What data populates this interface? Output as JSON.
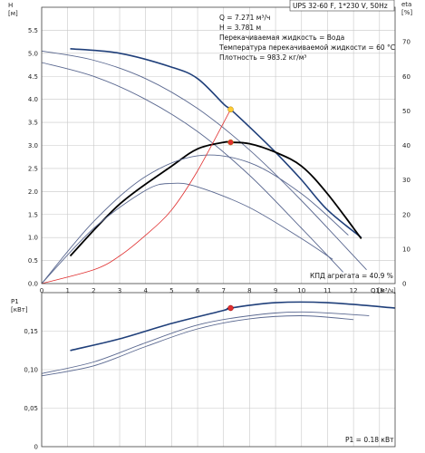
{
  "title": "UPS 32-60 F, 1*230 V, 50Hz",
  "info_lines": [
    "Q = 7.271 м³/ч",
    "H = 3.781 м",
    "Перекачиваемая жидкость = Вода",
    "Температура перекачиваемой жидкости = 60 °C",
    "Плотность = 983.2 кг/м³"
  ],
  "efficiency_note": "КПД агрегата = 40.9 %",
  "power_note": "P1 = 0.18 кВт",
  "chart_data": [
    {
      "type": "line",
      "name": "head-efficiency",
      "xlabel": "Q [м³/ч]",
      "ylabel_left": "H [м]",
      "ylabel_right": "eta [%]",
      "xlim": [
        0,
        13.6
      ],
      "ylim_left": [
        0,
        6.0
      ],
      "ylim_right": [
        0,
        80
      ],
      "x_ticks": [
        "0",
        "1",
        "2",
        "3",
        "4",
        "5",
        "6",
        "7",
        "8",
        "9",
        "10",
        "11",
        "12",
        "13"
      ],
      "y_ticks_left": [
        "0.0",
        "0.5",
        "1.0",
        "1.5",
        "2.0",
        "2.5",
        "3.0",
        "3.5",
        "4.0",
        "4.5",
        "5.0",
        "5.5"
      ],
      "y_ticks_right": [
        "0",
        "10",
        "20",
        "30",
        "40",
        "50",
        "60",
        "70"
      ],
      "grid": true,
      "series": [
        {
          "role": "head",
          "emphasis": "primary",
          "color": "#1f3f7a",
          "axis": "left",
          "x": [
            1.1,
            3,
            5,
            6,
            7,
            7.27,
            8,
            9,
            10,
            11,
            12.3
          ],
          "y": [
            5.1,
            5.0,
            4.7,
            4.45,
            3.9,
            3.781,
            3.4,
            2.85,
            2.25,
            1.6,
            1.0
          ]
        },
        {
          "role": "head",
          "emphasis": "secondary",
          "color": "#5a6890",
          "axis": "left",
          "x": [
            0,
            2,
            4,
            6,
            8,
            10,
            12.5
          ],
          "y": [
            5.05,
            4.85,
            4.45,
            3.8,
            2.9,
            1.8,
            0.3
          ]
        },
        {
          "role": "head",
          "emphasis": "secondary",
          "color": "#5a6890",
          "axis": "left",
          "x": [
            0,
            2,
            4,
            6,
            8,
            10,
            11.6
          ],
          "y": [
            4.8,
            4.5,
            4.0,
            3.3,
            2.35,
            1.2,
            0.25
          ]
        },
        {
          "role": "efficiency",
          "emphasis": "primary",
          "color": "#000000",
          "axis": "right",
          "x": [
            1.1,
            3,
            5,
            6,
            7,
            7.27,
            8,
            9,
            10,
            11,
            12.3
          ],
          "y": [
            8,
            23,
            34,
            39,
            40.9,
            40.9,
            40.5,
            38,
            34,
            26,
            13
          ]
        },
        {
          "role": "efficiency",
          "emphasis": "secondary",
          "color": "#5a6890",
          "axis": "right",
          "x": [
            0,
            2,
            4,
            6,
            8,
            10,
            11.8
          ],
          "y": [
            0,
            18,
            31,
            37,
            35,
            26,
            14
          ]
        },
        {
          "role": "efficiency",
          "emphasis": "secondary",
          "color": "#5a6890",
          "axis": "right",
          "x": [
            0,
            2,
            4,
            5,
            6,
            8,
            10,
            11.2
          ],
          "y": [
            0,
            16,
            27,
            29,
            28,
            22,
            13,
            7
          ]
        },
        {
          "role": "system",
          "emphasis": "secondary",
          "color": "#e03030",
          "axis": "left",
          "x": [
            0,
            2,
            3,
            4,
            5,
            6,
            7.271
          ],
          "y": [
            0,
            0.3,
            0.6,
            1.05,
            1.6,
            2.45,
            3.781
          ]
        }
      ],
      "points": [
        {
          "x": 7.271,
          "y": 3.781,
          "axis": "left",
          "color": "#ffcc33"
        },
        {
          "x": 7.271,
          "y": 40.9,
          "axis": "right",
          "color": "#e03030"
        }
      ]
    },
    {
      "type": "line",
      "name": "power",
      "ylabel": "P1 [кВт]",
      "xlim": [
        0,
        13.6
      ],
      "ylim": [
        0,
        0.2
      ],
      "y_ticks": [
        "0",
        "0,05",
        "0,10",
        "0,15"
      ],
      "grid": true,
      "series": [
        {
          "role": "power",
          "emphasis": "primary",
          "color": "#1f3f7a",
          "x": [
            1.1,
            3,
            5,
            7,
            7.27,
            9,
            11,
            13.6
          ],
          "y": [
            0.125,
            0.14,
            0.16,
            0.177,
            0.18,
            0.187,
            0.187,
            0.18
          ]
        },
        {
          "role": "power",
          "emphasis": "secondary",
          "color": "#5a6890",
          "x": [
            0,
            2,
            4,
            6,
            8,
            10,
            12.6
          ],
          "y": [
            0.095,
            0.11,
            0.135,
            0.158,
            0.17,
            0.175,
            0.17
          ]
        },
        {
          "role": "power",
          "emphasis": "secondary",
          "color": "#5a6890",
          "x": [
            0,
            2,
            4,
            6,
            8,
            10,
            12
          ],
          "y": [
            0.092,
            0.105,
            0.13,
            0.153,
            0.166,
            0.17,
            0.165
          ]
        }
      ],
      "points": [
        {
          "x": 7.271,
          "y": 0.18,
          "color": "#e03030"
        }
      ]
    }
  ]
}
